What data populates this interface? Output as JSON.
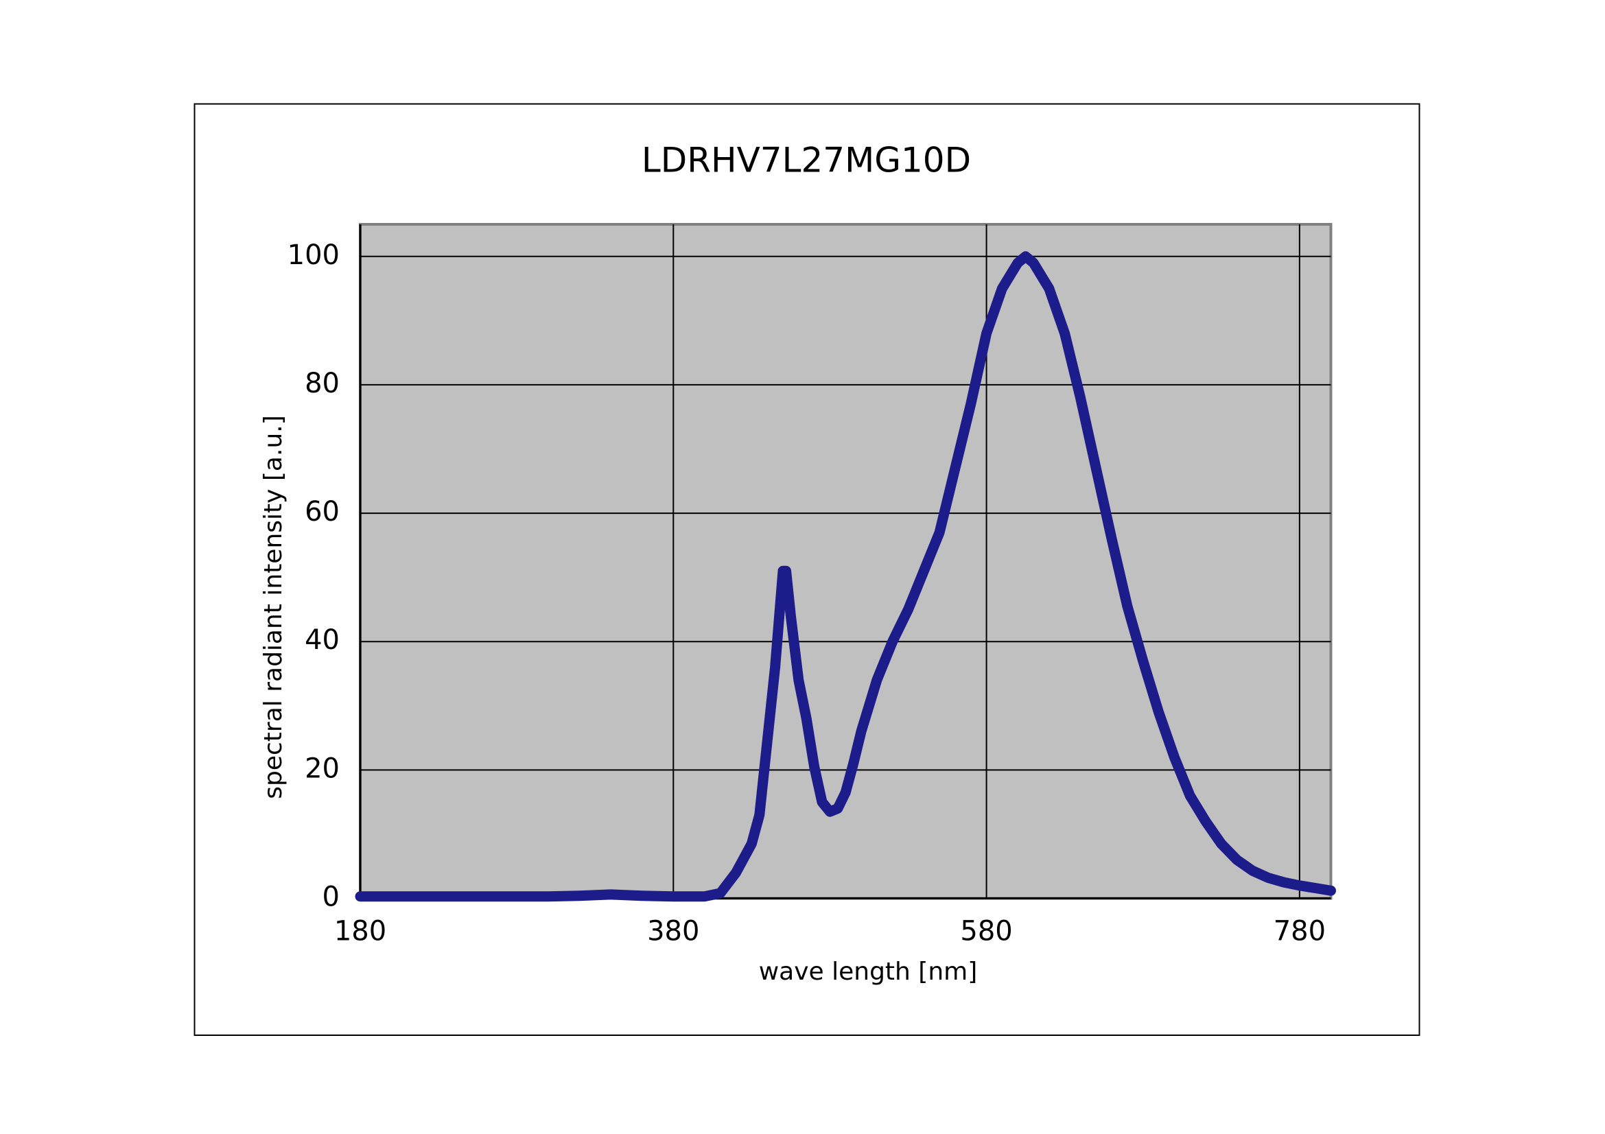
{
  "chart_data": {
    "type": "line",
    "title": "LDRHV7L27MG10D",
    "x_label": "wave length [nm]",
    "y_label": "spectral radiant intensity [a.u.]",
    "x": [
      180,
      200,
      220,
      240,
      260,
      280,
      300,
      320,
      340,
      360,
      380,
      400,
      410,
      420,
      430,
      435,
      440,
      445,
      450,
      452,
      455,
      460,
      465,
      470,
      475,
      480,
      485,
      490,
      495,
      500,
      510,
      520,
      530,
      540,
      550,
      560,
      570,
      580,
      590,
      600,
      605,
      610,
      620,
      630,
      640,
      650,
      660,
      670,
      680,
      690,
      700,
      710,
      720,
      730,
      740,
      750,
      760,
      770,
      780,
      790,
      800
    ],
    "values": [
      0.3,
      0.3,
      0.3,
      0.3,
      0.3,
      0.3,
      0.3,
      0.4,
      0.6,
      0.4,
      0.3,
      0.3,
      0.8,
      4,
      8.5,
      13,
      24.5,
      36,
      51,
      51,
      44,
      34,
      28,
      20.5,
      15,
      13.5,
      14,
      16.5,
      21,
      26,
      34,
      40,
      45,
      51,
      57,
      67,
      77,
      88,
      95,
      99,
      100,
      99,
      95,
      88,
      78,
      67,
      56,
      45.5,
      37,
      29,
      22,
      16,
      12,
      8.5,
      6,
      4.3,
      3.2,
      2.5,
      2,
      1.6,
      1.2
    ],
    "color": "#1c1c8a",
    "xlim": [
      180,
      800
    ],
    "xticks": [
      180,
      380,
      580,
      780
    ],
    "ylim": [
      0,
      105
    ],
    "yticks": [
      0,
      20,
      40,
      60,
      80,
      100
    ],
    "grid": true,
    "plot_background": "#c0c0c0"
  }
}
